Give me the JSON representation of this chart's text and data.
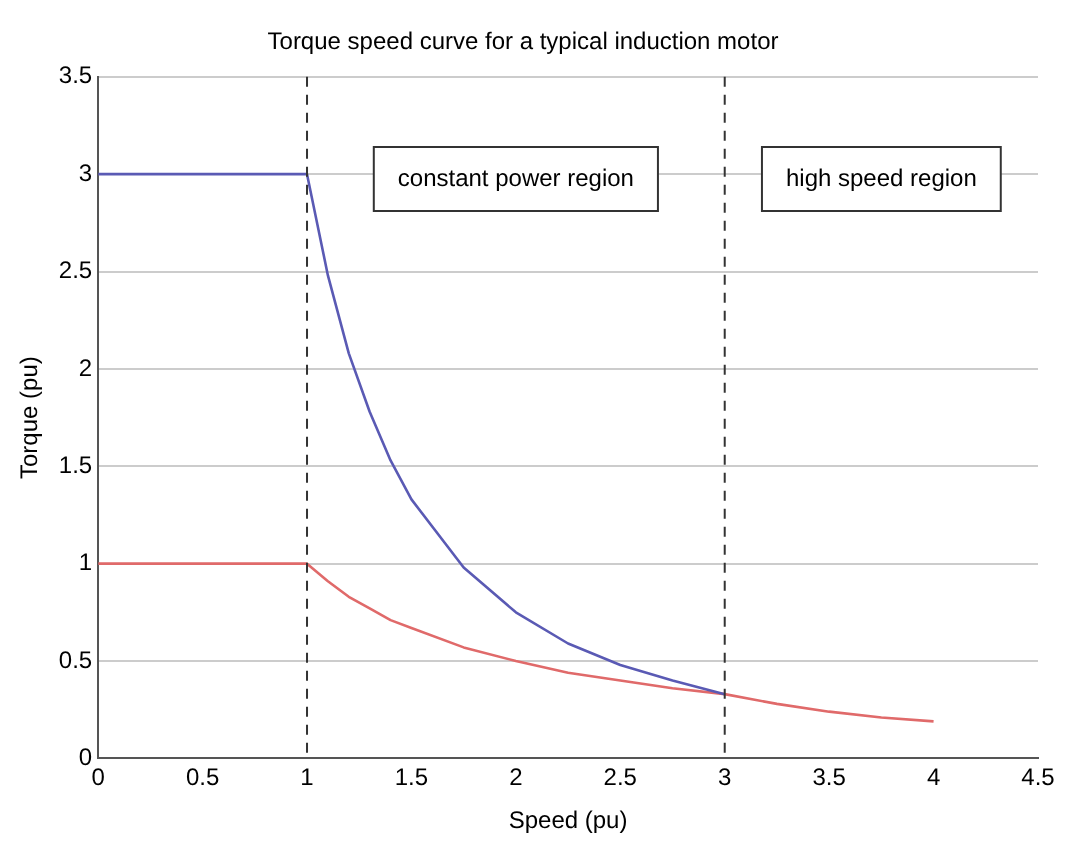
{
  "chart_data": {
    "type": "line",
    "title": "Torque speed curve for a typical induction motor",
    "xlabel": "Speed (pu)",
    "ylabel": "Torque (pu)",
    "x": [
      0,
      1,
      1.1,
      1.2,
      1.3,
      1.4,
      1.5,
      1.75,
      2,
      2.25,
      2.5,
      2.75,
      3,
      3.25,
      3.5,
      3.75,
      4
    ],
    "series": [
      {
        "color": "#5a5ab4",
        "values": [
          3,
          3,
          2.48,
          2.08,
          1.78,
          1.53,
          1.33,
          0.98,
          0.75,
          0.59,
          0.48,
          0.4,
          0.33,
          null,
          null,
          null,
          null
        ]
      },
      {
        "color": "#e06a6a",
        "values": [
          1,
          1,
          0.91,
          0.83,
          0.77,
          0.71,
          0.67,
          0.57,
          0.5,
          0.44,
          0.4,
          0.36,
          0.33,
          0.28,
          0.24,
          0.21,
          0.19
        ]
      }
    ],
    "xlim": [
      0,
      4.5
    ],
    "xticks": [
      0,
      0.5,
      1,
      1.5,
      2,
      2.5,
      3,
      3.5,
      4,
      4.5
    ],
    "ylim": [
      0,
      3.5
    ],
    "yticks": [
      0,
      0.5,
      1,
      1.5,
      2,
      2.5,
      3,
      3.5
    ],
    "ref_lines": [
      {
        "axis": "x",
        "value": 1,
        "color": "#333333",
        "line_style": "dashed"
      },
      {
        "axis": "x",
        "value": 3,
        "color": "#333333",
        "line_style": "dashed"
      }
    ],
    "annotations": [
      "constant power region",
      "high speed region"
    ],
    "grid": "y",
    "legend": false,
    "marker": "none",
    "line_style": "solid"
  }
}
